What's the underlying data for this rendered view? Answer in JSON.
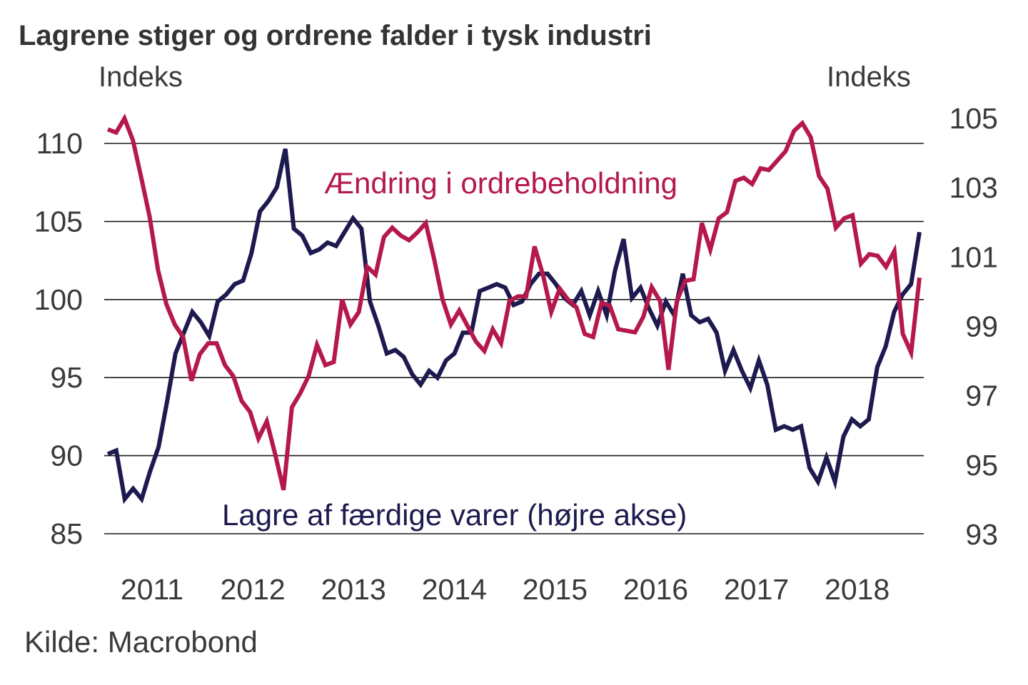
{
  "chart_data": {
    "type": "line",
    "title": "Lagrene stiger og ordrene falder i tysk industri",
    "source": "Kilde: Macrobond",
    "frequency": "monthly",
    "x_start": "2010-08",
    "x_end": "2018-09",
    "xticks": [
      "2011",
      "2012",
      "2013",
      "2014",
      "2015",
      "2016",
      "2017",
      "2018"
    ],
    "left_axis": {
      "label": "Indeks",
      "ylim": [
        85,
        110
      ],
      "ticks": [
        "110",
        "105",
        "100",
        "95",
        "90",
        "85"
      ]
    },
    "right_axis": {
      "label": "Indeks",
      "ylim": [
        93,
        105
      ],
      "ticks": [
        "105",
        "103",
        "101",
        "99",
        "97",
        "95",
        "93"
      ]
    },
    "grid": true,
    "legend": "none (inline annotations)",
    "series": [
      {
        "name": "Ændring i ordrebeholdning",
        "axis": "left",
        "color": "#b5184a",
        "annotation": "Ændring i ordrebeholdning",
        "values": [
          110.9,
          110.7,
          111.6,
          110.2,
          107.8,
          105.3,
          101.9,
          99.7,
          98.4,
          97.6,
          94.8,
          96.5,
          97.2,
          97.2,
          95.8,
          95.1,
          93.5,
          92.8,
          91.1,
          92.2,
          90.1,
          87.8,
          93.1,
          94.0,
          95.1,
          97.1,
          95.8,
          96.0,
          100.0,
          98.4,
          99.2,
          102.1,
          101.6,
          104.0,
          104.6,
          104.1,
          103.8,
          104.3,
          104.9,
          102.6,
          100.0,
          98.4,
          99.3,
          98.3,
          97.3,
          96.7,
          98.1,
          97.2,
          99.9,
          100.2,
          100.2,
          103.4,
          101.6,
          99.2,
          100.7,
          100.0,
          99.5,
          97.8,
          97.6,
          99.8,
          99.6,
          98.1,
          98.0,
          97.9,
          98.9,
          100.8,
          99.9,
          95.5,
          99.9,
          101.2,
          101.3,
          104.9,
          103.2,
          105.2,
          105.6,
          107.6,
          107.8,
          107.4,
          108.4,
          108.3,
          108.9,
          109.5,
          110.8,
          111.3,
          110.4,
          107.9,
          107.1,
          104.6,
          105.2,
          105.4,
          102.3,
          102.9,
          102.8,
          102.1,
          103.1,
          97.8,
          96.6,
          101.4
        ]
      },
      {
        "name": "Lagre af færdige varer (højre akse)",
        "axis": "right",
        "color": "#1c1a4e",
        "annotation": "Lagre af færdige varer (højre akse)",
        "values": [
          95.3,
          95.4,
          94.0,
          94.3,
          94.0,
          94.8,
          95.5,
          96.8,
          98.2,
          98.8,
          99.4,
          99.1,
          98.7,
          99.7,
          99.9,
          100.2,
          100.3,
          101.1,
          102.3,
          102.6,
          103.0,
          104.1,
          101.8,
          101.6,
          101.1,
          101.2,
          101.4,
          101.3,
          101.7,
          102.1,
          101.8,
          99.7,
          99.0,
          98.2,
          98.3,
          98.1,
          97.6,
          97.3,
          97.7,
          97.5,
          98.0,
          98.2,
          98.8,
          98.8,
          100.0,
          100.1,
          100.2,
          100.1,
          99.6,
          99.7,
          100.2,
          100.5,
          100.5,
          100.2,
          99.8,
          99.6,
          100.0,
          99.3,
          100.0,
          99.3,
          100.6,
          101.5,
          99.8,
          100.1,
          99.5,
          99.0,
          99.7,
          99.3,
          100.5,
          99.3,
          99.1,
          99.2,
          98.8,
          97.7,
          98.3,
          97.7,
          97.2,
          98.0,
          97.3,
          96.0,
          96.1,
          96.0,
          96.1,
          94.9,
          94.5,
          95.2,
          94.5,
          95.8,
          96.3,
          96.1,
          96.3,
          97.8,
          98.4,
          99.4,
          99.9,
          100.2,
          101.7
        ]
      }
    ]
  }
}
